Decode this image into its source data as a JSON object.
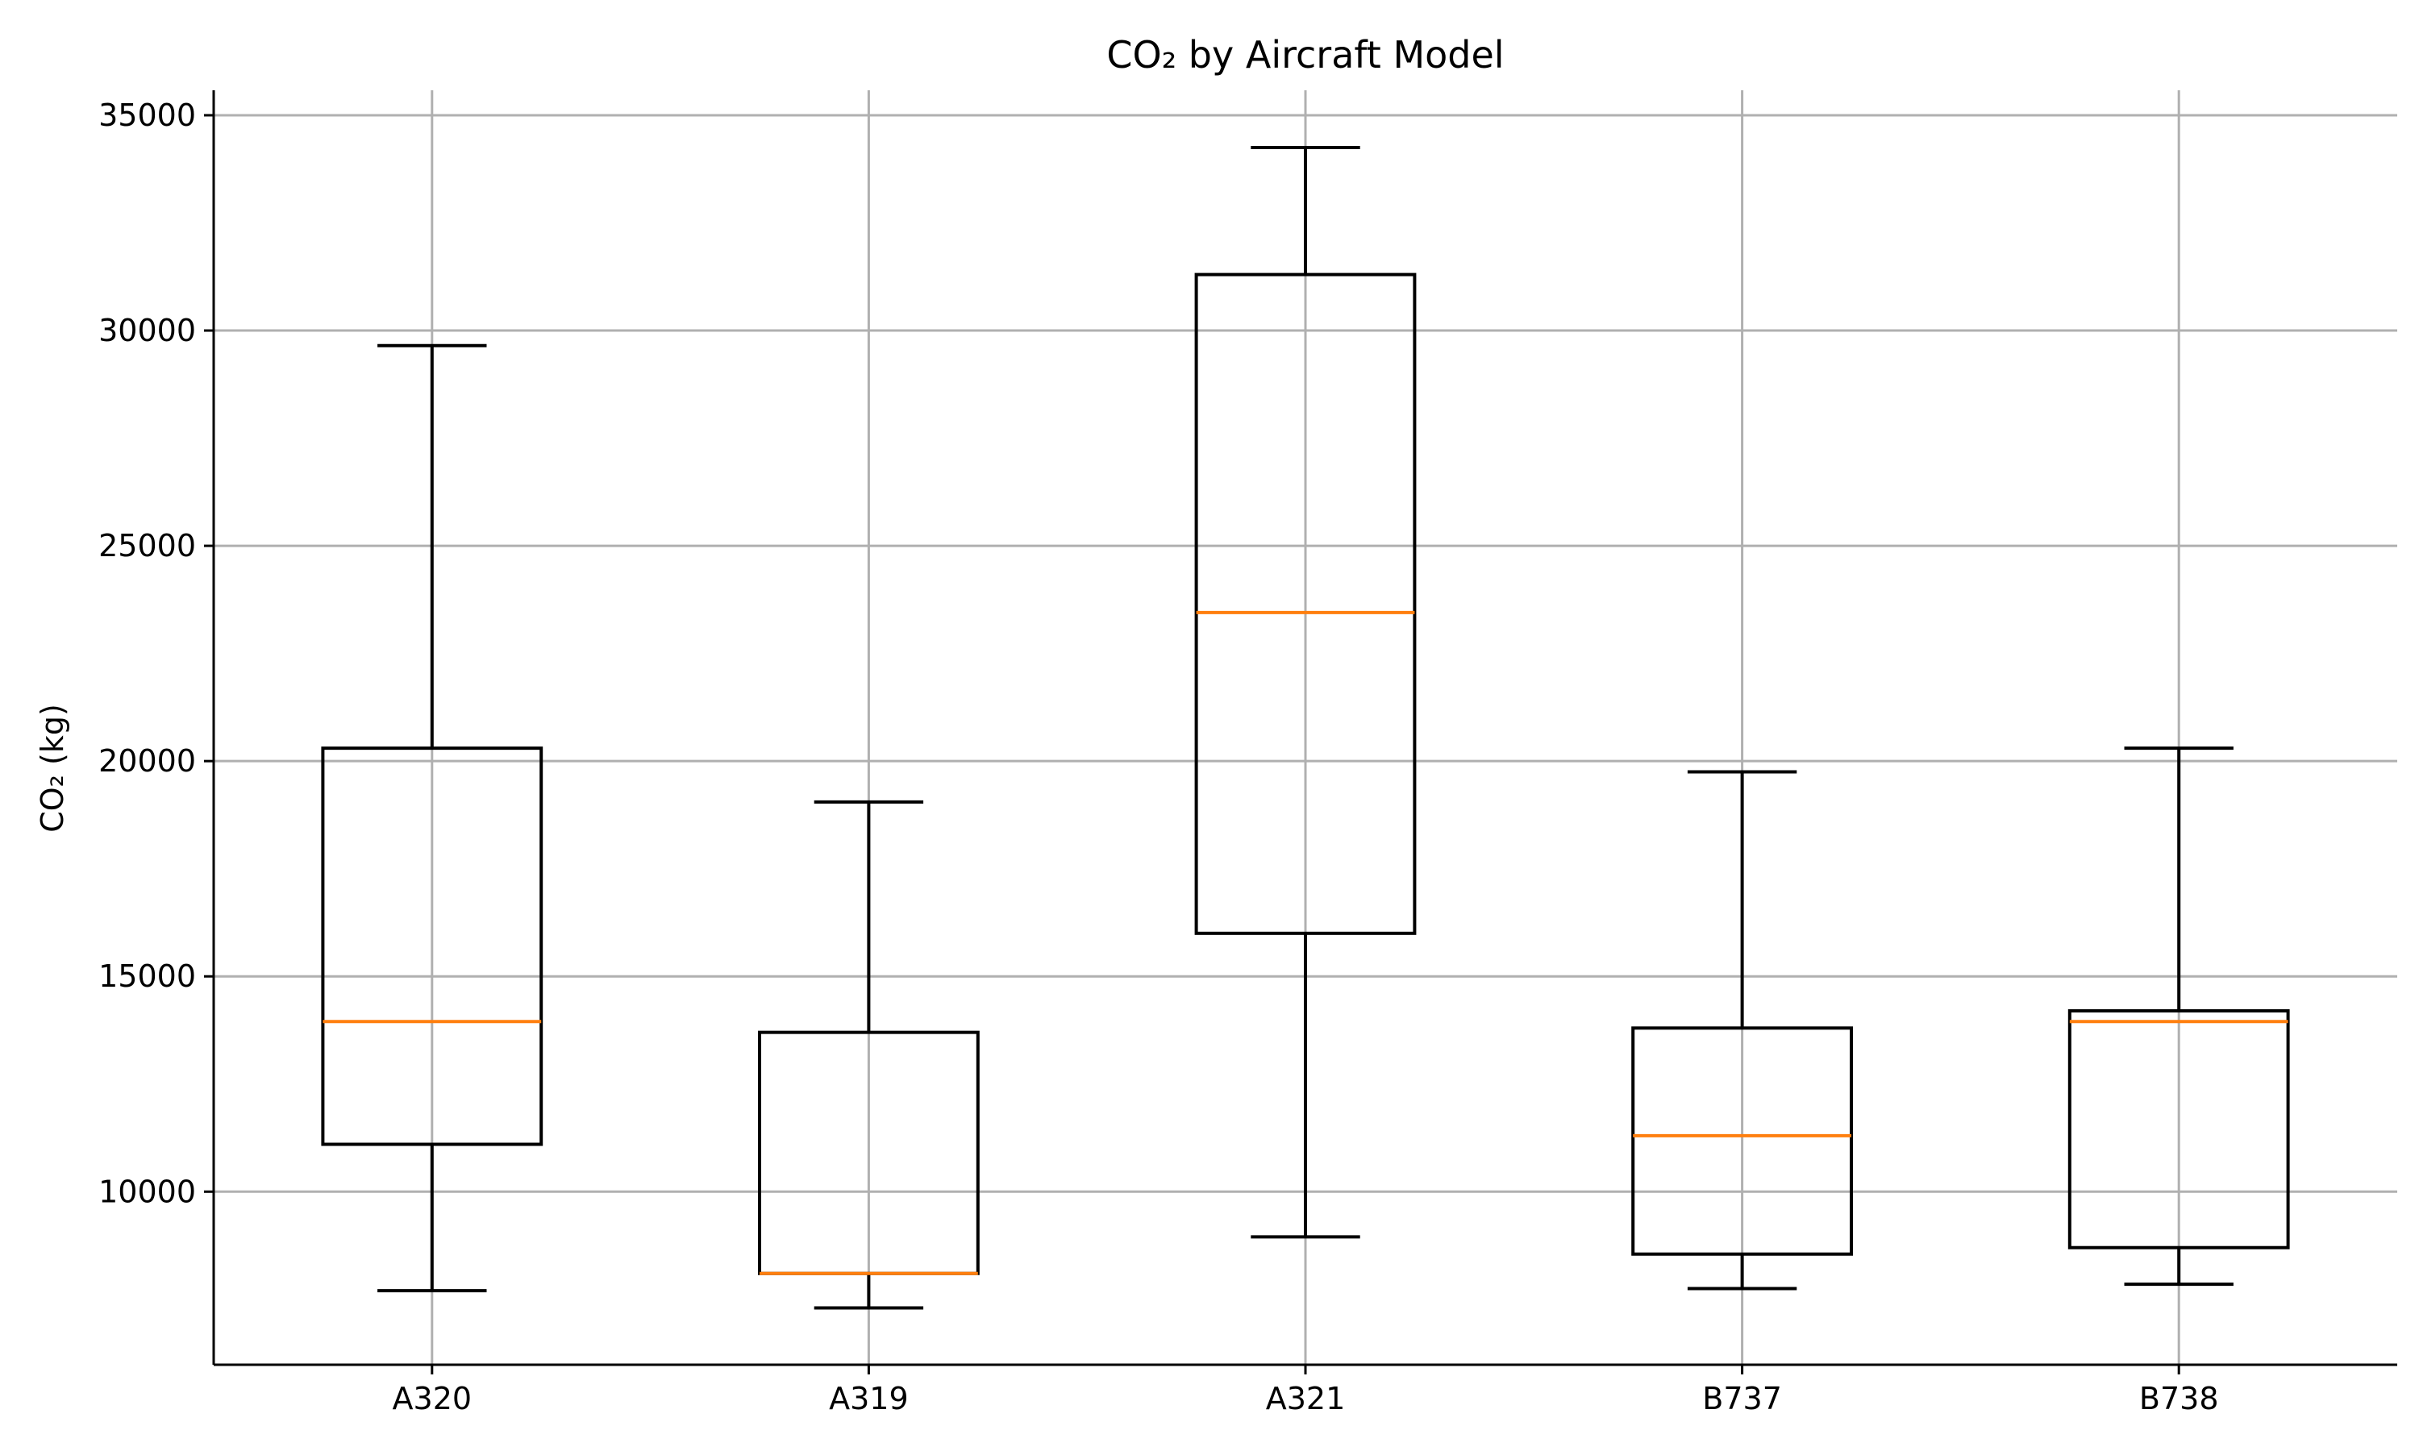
{
  "chart_data": {
    "type": "box",
    "title": "CO₂ by Aircraft Model",
    "xlabel": "",
    "ylabel": "CO₂ (kg)",
    "categories": [
      "A320",
      "A319",
      "A321",
      "B737",
      "B738"
    ],
    "boxes": [
      {
        "category": "A320",
        "whisker_low": 7700,
        "q1": 11100,
        "median": 13950,
        "q3": 20300,
        "whisker_high": 29650
      },
      {
        "category": "A319",
        "whisker_low": 7300,
        "q1": 8100,
        "median": 8100,
        "q3": 13700,
        "whisker_high": 19050
      },
      {
        "category": "A321",
        "whisker_low": 8950,
        "q1": 16000,
        "median": 23450,
        "q3": 31300,
        "whisker_high": 34250
      },
      {
        "category": "B737",
        "whisker_low": 7750,
        "q1": 8550,
        "median": 11300,
        "q3": 13800,
        "whisker_high": 19750
      },
      {
        "category": "B738",
        "whisker_low": 7850,
        "q1": 8700,
        "median": 13950,
        "q3": 14200,
        "whisker_high": 20300
      }
    ],
    "yticks": [
      10000,
      15000,
      20000,
      25000,
      30000,
      35000
    ],
    "ylim": [
      5980,
      35580
    ],
    "grid": true,
    "legend": "none",
    "colors": {
      "box": "#000000",
      "median": "#ff7f0e",
      "grid": "#b0b0b0"
    }
  }
}
